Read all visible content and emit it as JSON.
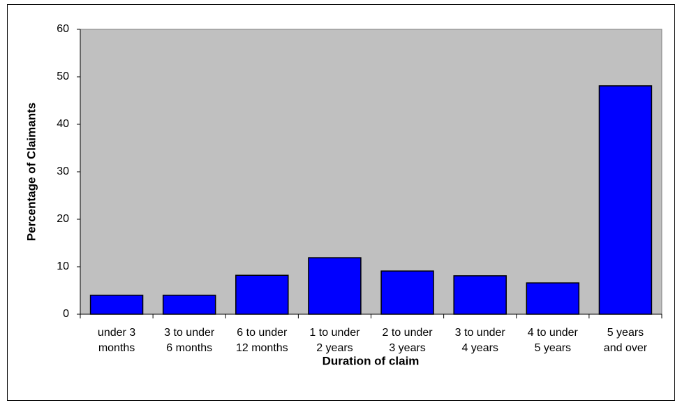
{
  "chart_data": {
    "type": "bar",
    "x_label": "Duration of claim",
    "y_label": "Percentage of Claimants",
    "categories": [
      "under 3\nmonths",
      "3 to under\n6 months",
      "6 to under\n12 months",
      "1 to under\n2 years",
      "2 to under\n3 years",
      "3 to under\n4 years",
      "4 to under\n5 years",
      "5 years\nand over"
    ],
    "values": [
      4,
      4,
      8.2,
      11.9,
      9.1,
      8.1,
      6.6,
      48.1
    ],
    "color": "#0000ff",
    "plot_background": "#c0c0c0",
    "ylim": [
      0,
      60
    ],
    "yticks": [
      0,
      10,
      20,
      30,
      40,
      50,
      60
    ],
    "grid": false
  }
}
